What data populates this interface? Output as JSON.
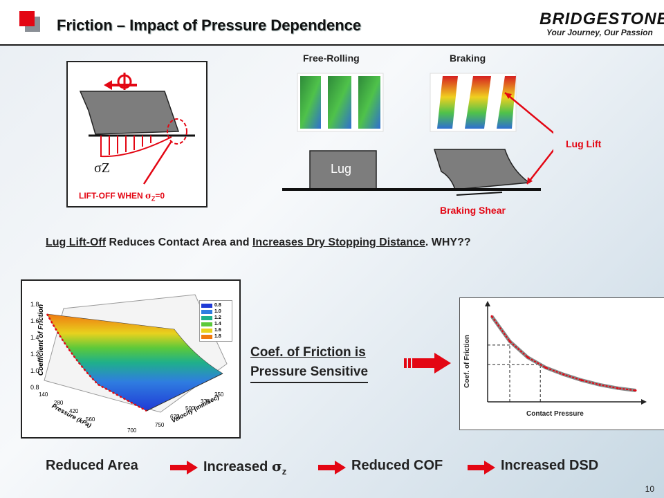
{
  "header": {
    "title": "Friction – Impact of Pressure Dependence",
    "logo_name": "BRIDGESTONE",
    "logo_tagline": "Your Journey, Our Passion"
  },
  "left_diagram": {
    "sigma_label": "σZ",
    "lift_off_prefix": "LIFT-OFF WHEN ",
    "lift_off_symbol": "σ",
    "lift_off_sub": "Z",
    "lift_off_suffix": "=0"
  },
  "lug_panels": {
    "free_rolling": "Free-Rolling",
    "braking": "Braking",
    "lug": "Lug",
    "lug_lift": "Lug Lift",
    "braking_shear": "Braking Shear"
  },
  "statement": {
    "part1": "Lug Lift-Off",
    "part2": " Reduces Contact Area and ",
    "part3": "Increases Dry Stopping Distance",
    "part4": ".   WHY??"
  },
  "surface_plot": {
    "zlabel": "Coefficient of Friction",
    "xlabel": "Pressure (kPa)",
    "ylabel": "Velocity (mm/sec)",
    "z_ticks": [
      "1.8",
      "1.6",
      "1.4",
      "1.2",
      "1.0",
      "0.8"
    ],
    "pressure_ticks": [
      "140",
      "280",
      "420",
      "560",
      "700"
    ],
    "velocity_ticks": [
      "250",
      "375",
      "500",
      "625",
      "750"
    ],
    "legend": [
      {
        "label": "0.8",
        "color": "#1f3ad6"
      },
      {
        "label": "1.0",
        "color": "#2f7de0"
      },
      {
        "label": "1.2",
        "color": "#1fb08a"
      },
      {
        "label": "1.4",
        "color": "#5cc93a"
      },
      {
        "label": "1.6",
        "color": "#e8d21e"
      },
      {
        "label": "1.8",
        "color": "#f07a10"
      }
    ]
  },
  "middle_note": {
    "line1": "Coef. of Friction is",
    "line2": "Pressure Sensitive"
  },
  "chart_data": {
    "type": "line",
    "title": "",
    "xlabel": "Contact Pressure",
    "ylabel": "Coef.  of Friction",
    "series": [
      {
        "values": [
          1.0,
          0.78,
          0.64,
          0.55,
          0.49,
          0.44,
          0.4,
          0.37,
          0.35
        ]
      }
    ],
    "x": [
      1,
      2,
      3,
      4,
      5,
      6,
      7,
      8,
      9
    ],
    "grid": false
  },
  "chain": {
    "step1": "Reduced Area",
    "step2": "Increased ",
    "step2_sym": "σ",
    "step2_sub": "z",
    "step3": "Reduced COF",
    "step4": "Increased DSD"
  },
  "page_number": "10",
  "colors": {
    "accent": "#e30613",
    "text": "#222222"
  }
}
